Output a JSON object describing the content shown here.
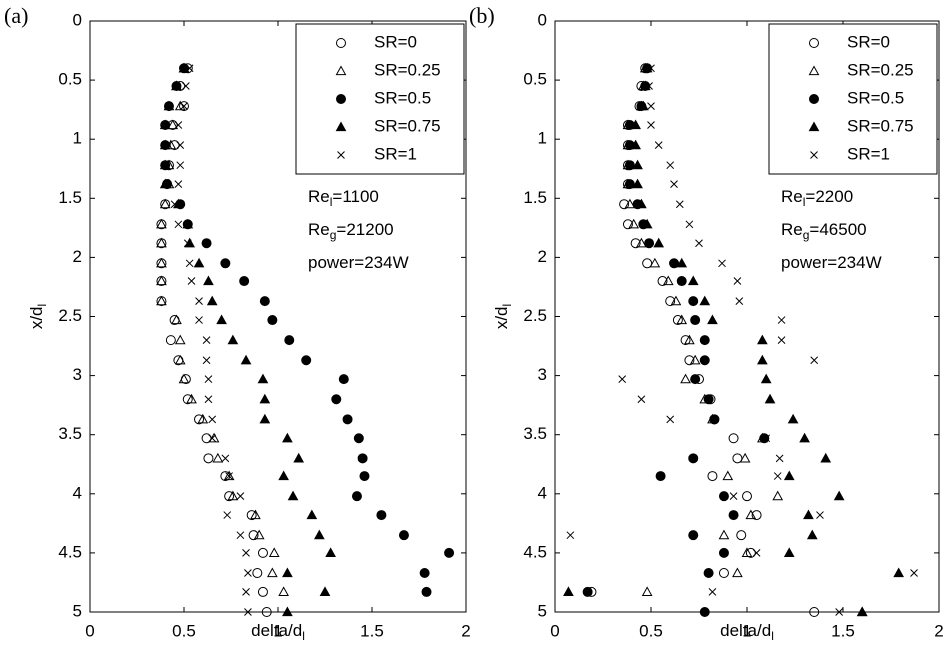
{
  "chart_data": [
    {
      "type": "scatter",
      "panel_label": "(a)",
      "xlabel": {
        "text": "delta/d",
        "sub": "l"
      },
      "ylabel": {
        "text": "x/d",
        "sub": "l"
      },
      "xlim": [
        0,
        2
      ],
      "ylim": [
        0,
        5
      ],
      "y_inverted": true,
      "legend": "upper right",
      "xticks": [
        0,
        0.5,
        1,
        1.5,
        2
      ],
      "yticks": [
        0,
        0.5,
        1,
        1.5,
        2,
        2.5,
        3,
        3.5,
        4,
        4.5,
        5
      ],
      "y": [
        0.4,
        0.55,
        0.72,
        0.88,
        1.05,
        1.22,
        1.38,
        1.55,
        1.72,
        1.88,
        2.05,
        2.2,
        2.37,
        2.53,
        2.7,
        2.87,
        3.03,
        3.2,
        3.37,
        3.53,
        3.7,
        3.85,
        4.02,
        4.18,
        4.35,
        4.5,
        4.67,
        4.83,
        5.0
      ],
      "series": [
        {
          "name": "SR=0",
          "marker": "circle-open",
          "color": "#000000",
          "x": [
            0.52,
            0.48,
            0.5,
            0.44,
            0.45,
            0.42,
            0.41,
            0.4,
            0.38,
            0.38,
            0.38,
            0.38,
            0.38,
            0.45,
            0.43,
            0.47,
            0.51,
            0.52,
            0.58,
            0.62,
            0.63,
            0.72,
            0.74,
            0.86,
            0.87,
            0.92,
            0.89,
            0.92,
            0.94
          ]
        },
        {
          "name": "SR=0.25",
          "marker": "triangle-open",
          "color": "#000000",
          "x": [
            0.5,
            0.46,
            0.48,
            0.44,
            0.43,
            0.42,
            0.42,
            0.4,
            0.38,
            0.38,
            0.38,
            0.38,
            0.38,
            0.46,
            0.48,
            0.48,
            0.5,
            0.54,
            0.6,
            0.66,
            0.68,
            0.74,
            0.76,
            0.88,
            0.9,
            0.98,
            0.97,
            1.03,
            null
          ]
        },
        {
          "name": "SR=0.5",
          "marker": "circle-filled",
          "color": "#000000",
          "x": [
            0.5,
            0.46,
            0.42,
            0.4,
            0.4,
            0.4,
            0.41,
            0.48,
            0.52,
            0.62,
            0.72,
            0.82,
            0.93,
            0.97,
            1.06,
            1.15,
            1.35,
            1.31,
            1.37,
            1.43,
            1.45,
            1.46,
            1.42,
            1.55,
            1.67,
            1.91,
            1.78,
            1.79,
            null
          ]
        },
        {
          "name": "SR=0.75",
          "marker": "triangle-filled",
          "color": "#000000",
          "x": [
            0.5,
            0.46,
            0.42,
            0.4,
            0.4,
            0.4,
            0.4,
            0.47,
            0.52,
            0.53,
            0.58,
            0.63,
            0.65,
            0.7,
            0.76,
            0.83,
            0.92,
            0.93,
            0.93,
            1.05,
            1.11,
            1.03,
            1.08,
            1.18,
            1.22,
            1.28,
            1.05,
            1.25,
            1.05
          ]
        },
        {
          "name": "SR=1",
          "marker": "cross",
          "color": "#000000",
          "x": [
            0.53,
            0.51,
            0.5,
            0.47,
            0.48,
            0.48,
            0.47,
            0.45,
            0.47,
            0.52,
            0.53,
            0.54,
            0.58,
            0.58,
            0.62,
            0.62,
            0.63,
            0.63,
            0.65,
            0.65,
            0.72,
            0.74,
            0.8,
            0.73,
            0.8,
            0.83,
            0.84,
            0.83,
            0.84
          ]
        }
      ],
      "annotations": [
        {
          "text": "Re",
          "sub": "l",
          "tail": "=1100"
        },
        {
          "text": "Re",
          "sub": "g",
          "tail": "=21200"
        },
        {
          "text": "power=234W"
        }
      ]
    },
    {
      "type": "scatter",
      "panel_label": "(b)",
      "xlabel": {
        "text": "delta/d",
        "sub": "l"
      },
      "ylabel": {
        "text": "x/d",
        "sub": "l"
      },
      "xlim": [
        0,
        2
      ],
      "ylim": [
        0,
        5
      ],
      "y_inverted": true,
      "legend": "upper right",
      "xticks": [
        0,
        0.5,
        1,
        1.5,
        2
      ],
      "yticks": [
        0,
        0.5,
        1,
        1.5,
        2,
        2.5,
        3,
        3.5,
        4,
        4.5,
        5
      ],
      "y": [
        0.4,
        0.55,
        0.72,
        0.88,
        1.05,
        1.22,
        1.38,
        1.55,
        1.72,
        1.88,
        2.05,
        2.2,
        2.37,
        2.53,
        2.7,
        2.87,
        3.03,
        3.2,
        3.37,
        3.53,
        3.7,
        3.85,
        4.02,
        4.18,
        4.35,
        4.5,
        4.67,
        4.83,
        5.0
      ],
      "series": [
        {
          "name": "SR=0",
          "marker": "circle-open",
          "color": "#000000",
          "x": [
            0.47,
            0.45,
            0.44,
            0.38,
            0.38,
            0.38,
            0.38,
            0.36,
            0.38,
            0.42,
            0.48,
            0.56,
            0.6,
            0.64,
            0.68,
            0.7,
            0.75,
            0.81,
            0.83,
            0.93,
            0.95,
            0.82,
            1.0,
            1.05,
            0.97,
            1.02,
            0.88,
            0.19,
            1.35
          ]
        },
        {
          "name": "SR=0.25",
          "marker": "triangle-open",
          "color": "#000000",
          "x": [
            0.47,
            0.46,
            0.45,
            0.38,
            0.38,
            0.38,
            0.38,
            0.39,
            0.41,
            0.45,
            0.52,
            0.59,
            0.63,
            0.66,
            0.7,
            0.73,
            0.68,
            0.78,
            0.82,
            1.08,
            0.99,
            0.9,
            1.16,
            1.02,
            0.88,
            1.0,
            0.95,
            0.48,
            1.6
          ]
        },
        {
          "name": "SR=0.5",
          "marker": "circle-filled",
          "color": "#000000",
          "x": [
            0.48,
            0.47,
            0.45,
            0.39,
            0.39,
            0.39,
            0.39,
            0.43,
            0.46,
            0.49,
            0.62,
            0.66,
            0.72,
            0.73,
            0.78,
            0.78,
            0.73,
            0.8,
            0.83,
            1.09,
            0.72,
            0.55,
            0.88,
            0.93,
            0.72,
            0.88,
            0.8,
            0.17,
            0.78
          ]
        },
        {
          "name": "SR=0.75",
          "marker": "triangle-filled",
          "color": "#000000",
          "x": [
            0.48,
            0.47,
            0.46,
            0.42,
            0.42,
            0.43,
            0.43,
            0.45,
            0.48,
            0.54,
            0.66,
            0.72,
            0.78,
            0.82,
            1.08,
            1.08,
            1.1,
            1.12,
            1.24,
            1.3,
            1.41,
            1.22,
            1.48,
            1.32,
            1.34,
            1.22,
            1.79,
            0.07,
            1.6
          ]
        },
        {
          "name": "SR=1",
          "marker": "cross",
          "color": "#000000",
          "x": [
            0.5,
            0.49,
            0.5,
            0.5,
            0.54,
            0.6,
            0.62,
            0.65,
            0.7,
            0.75,
            0.87,
            0.95,
            0.96,
            1.18,
            1.18,
            1.35,
            0.35,
            0.45,
            0.6,
            1.1,
            1.17,
            1.16,
            0.93,
            1.38,
            0.08,
            1.05,
            1.87,
            0.82,
            1.48
          ]
        }
      ],
      "annotations": [
        {
          "text": "Re",
          "sub": "l",
          "tail": "=2200"
        },
        {
          "text": "Re",
          "sub": "g",
          "tail": "=46500"
        },
        {
          "text": "power=234W"
        }
      ]
    }
  ]
}
